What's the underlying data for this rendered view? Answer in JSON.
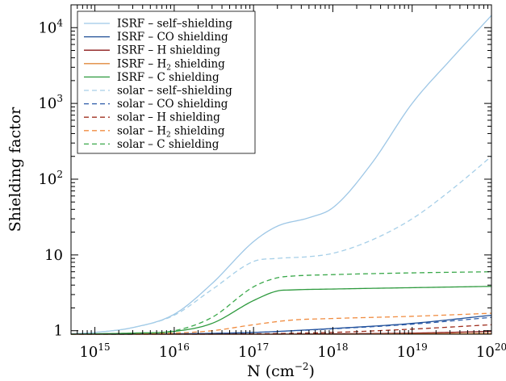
{
  "chart_data": {
    "type": "line",
    "xlabel": "N (cm",
    "xlabel_sup": "−2",
    "xlabel_close": ")",
    "ylabel": "Shielding factor",
    "xscale": "log",
    "yscale": "log",
    "xlim": [
      500000000000000.0,
      1e+20
    ],
    "ylim": [
      0.9,
      20000
    ],
    "grid": false,
    "legend_placement": "top-left",
    "x_ticks": [
      {
        "value": 1000000000000000.0,
        "base": "10",
        "exp": "15"
      },
      {
        "value": 1e+16,
        "base": "10",
        "exp": "16"
      },
      {
        "value": 1e+17,
        "base": "10",
        "exp": "17"
      },
      {
        "value": 1e+18,
        "base": "10",
        "exp": "18"
      },
      {
        "value": 1e+19,
        "base": "10",
        "exp": "19"
      },
      {
        "value": 1e+20,
        "base": "10",
        "exp": "20"
      }
    ],
    "y_ticks": [
      {
        "value": 1,
        "base": "1",
        "exp": ""
      },
      {
        "value": 10,
        "base": "10",
        "exp": ""
      },
      {
        "value": 100,
        "base": "10",
        "exp": "2"
      },
      {
        "value": 1000,
        "base": "10",
        "exp": "3"
      },
      {
        "value": 10000,
        "base": "10",
        "exp": "4"
      }
    ],
    "series": [
      {
        "name": "ISRF – self–shielding",
        "sub": "",
        "name_rest": "",
        "color": "#9ec7e6",
        "dash": "solid",
        "x": [
          500000000000000.0,
          1000000000000000.0,
          3000000000000000.0,
          1e+16,
          3e+16,
          1e+17,
          2e+17,
          5e+17,
          1e+18,
          3e+18,
          1e+19,
          3e+19,
          1e+20
        ],
        "y": [
          0.91,
          0.95,
          1.1,
          1.65,
          4.2,
          15,
          24,
          31,
          42,
          155,
          1000,
          3700,
          14500
        ]
      },
      {
        "name": "ISRF – CO shielding",
        "sub": "",
        "name_rest": "",
        "color": "#1f4e96",
        "dash": "solid",
        "x": [
          500000000000000.0,
          1000000000000000.0,
          1e+16,
          1e+17,
          1e+18,
          1e+19,
          1e+20
        ],
        "y": [
          0.9,
          0.9,
          0.91,
          0.95,
          1.07,
          1.25,
          1.6
        ]
      },
      {
        "name": "ISRF – H shielding",
        "sub": "",
        "name_rest": "",
        "color": "#8b1a1a",
        "dash": "solid",
        "x": [
          500000000000000.0,
          1000000000000000.0,
          1e+16,
          1e+17,
          1e+18,
          1e+19,
          1e+20
        ],
        "y": [
          0.9,
          0.9,
          0.9,
          0.9,
          0.91,
          0.93,
          0.98
        ]
      },
      {
        "name": "ISRF – H",
        "sub": "2",
        "name_rest": " shielding",
        "color": "#e08a3c",
        "dash": "solid",
        "x": [
          500000000000000.0,
          1000000000000000.0,
          1e+16,
          1e+17,
          1e+18,
          1e+19,
          1e+20
        ],
        "y": [
          0.9,
          0.9,
          0.9,
          0.9,
          0.9,
          0.91,
          0.92
        ]
      },
      {
        "name": "ISRF – C shielding",
        "sub": "",
        "name_rest": "",
        "color": "#2e9a3e",
        "dash": "solid",
        "x": [
          500000000000000.0,
          1000000000000000.0,
          3000000000000000.0,
          1e+16,
          3e+16,
          1e+17,
          2e+17,
          3e+17,
          1e+18,
          1e+19,
          1e+20
        ],
        "y": [
          0.9,
          0.91,
          0.93,
          0.98,
          1.25,
          2.5,
          3.35,
          3.45,
          3.55,
          3.7,
          3.85
        ]
      },
      {
        "name": "solar – self–shielding",
        "sub": "",
        "name_rest": "",
        "color": "#a6cfe8",
        "dash": "dashed",
        "x": [
          500000000000000.0,
          1000000000000000.0,
          3000000000000000.0,
          1e+16,
          3e+16,
          1e+17,
          2e+17,
          5e+17,
          1e+18,
          3e+18,
          1e+19,
          3e+19,
          1e+20
        ],
        "y": [
          0.91,
          0.95,
          1.1,
          1.6,
          3.5,
          8.2,
          9.0,
          9.5,
          10.5,
          15.5,
          30,
          70,
          200
        ]
      },
      {
        "name": "solar – CO shielding",
        "sub": "",
        "name_rest": "",
        "color": "#2b5aa8",
        "dash": "dashed",
        "x": [
          500000000000000.0,
          1000000000000000.0,
          1e+16,
          1e+17,
          1e+18,
          1e+19,
          1e+20
        ],
        "y": [
          0.9,
          0.9,
          0.91,
          0.95,
          1.06,
          1.22,
          1.5
        ]
      },
      {
        "name": "solar – H shielding",
        "sub": "",
        "name_rest": "",
        "color": "#a03020",
        "dash": "dashed",
        "x": [
          500000000000000.0,
          1000000000000000.0,
          1e+16,
          1e+17,
          1e+18,
          1e+19,
          1e+20
        ],
        "y": [
          0.9,
          0.9,
          0.9,
          0.91,
          0.95,
          1.05,
          1.2
        ]
      },
      {
        "name": "solar – H",
        "sub": "2",
        "name_rest": " shielding",
        "color": "#f08c40",
        "dash": "dashed",
        "x": [
          500000000000000.0,
          1000000000000000.0,
          3000000000000000.0,
          1e+16,
          3e+16,
          1e+17,
          3e+17,
          1e+18,
          1e+19,
          1e+20
        ],
        "y": [
          0.9,
          0.9,
          0.91,
          0.93,
          1.0,
          1.2,
          1.38,
          1.45,
          1.55,
          1.7
        ]
      },
      {
        "name": "solar – C shielding",
        "sub": "",
        "name_rest": "",
        "color": "#3aa84a",
        "dash": "dashed",
        "x": [
          500000000000000.0,
          1000000000000000.0,
          3000000000000000.0,
          1e+16,
          3e+16,
          1e+17,
          2e+17,
          3e+17,
          1e+18,
          1e+19,
          1e+20
        ],
        "y": [
          0.9,
          0.91,
          0.93,
          1.0,
          1.5,
          3.8,
          5.0,
          5.25,
          5.5,
          5.8,
          6.0
        ]
      }
    ]
  }
}
